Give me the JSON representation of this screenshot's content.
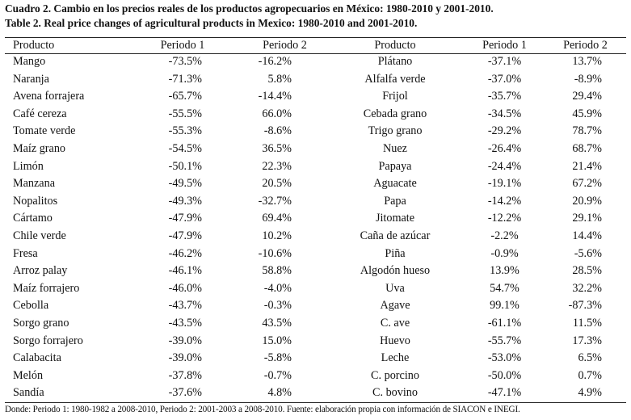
{
  "caption": {
    "spanish": "Cuadro 2. Cambio en los precios reales de los productos agropecuarios en México: 1980-2010 y 2001-2010.",
    "english": "Table 2. Real price changes of agricultural products in Mexico: 1980-2010 and 2001-2010."
  },
  "table": {
    "headers": [
      "Producto",
      "Periodo 1",
      "Periodo 2",
      "Producto",
      "Periodo 1",
      "Periodo 2"
    ],
    "rows": [
      [
        "Mango",
        "-73.5%",
        "-16.2%",
        "Plátano",
        "-37.1%",
        "13.7%"
      ],
      [
        "Naranja",
        "-71.3%",
        "5.8%",
        "Alfalfa verde",
        "-37.0%",
        "-8.9%"
      ],
      [
        "Avena forrajera",
        "-65.7%",
        "-14.4%",
        "Frijol",
        "-35.7%",
        "29.4%"
      ],
      [
        "Café cereza",
        "-55.5%",
        "66.0%",
        "Cebada grano",
        "-34.5%",
        "45.9%"
      ],
      [
        "Tomate verde",
        "-55.3%",
        "-8.6%",
        "Trigo grano",
        "-29.2%",
        "78.7%"
      ],
      [
        "Maíz grano",
        "-54.5%",
        "36.5%",
        "Nuez",
        "-26.4%",
        "68.7%"
      ],
      [
        "Limón",
        "-50.1%",
        "22.3%",
        "Papaya",
        "-24.4%",
        "21.4%"
      ],
      [
        "Manzana",
        "-49.5%",
        "20.5%",
        "Aguacate",
        "-19.1%",
        "67.2%"
      ],
      [
        "Nopalitos",
        "-49.3%",
        "-32.7%",
        "Papa",
        "-14.2%",
        "20.9%"
      ],
      [
        "Cártamo",
        "-47.9%",
        "69.4%",
        "Jitomate",
        "-12.2%",
        "29.1%"
      ],
      [
        "Chile verde",
        "-47.9%",
        "10.2%",
        "Caña de azúcar",
        "-2.2%",
        "14.4%"
      ],
      [
        "Fresa",
        "-46.2%",
        "-10.6%",
        "Piña",
        "-0.9%",
        "-5.6%"
      ],
      [
        "Arroz palay",
        "-46.1%",
        "58.8%",
        "Algodón hueso",
        "13.9%",
        "28.5%"
      ],
      [
        "Maíz forrajero",
        "-46.0%",
        "-4.0%",
        "Uva",
        "54.7%",
        "32.2%"
      ],
      [
        "Cebolla",
        "-43.7%",
        "-0.3%",
        "Agave",
        "99.1%",
        "-87.3%"
      ],
      [
        "Sorgo grano",
        "-43.5%",
        "43.5%",
        "C. ave",
        "-61.1%",
        "11.5%"
      ],
      [
        "Sorgo forrajero",
        "-39.0%",
        "15.0%",
        "Huevo",
        "-55.7%",
        "17.3%"
      ],
      [
        "Calabacita",
        "-39.0%",
        "-5.8%",
        "Leche",
        "-53.0%",
        "6.5%"
      ],
      [
        "Melón",
        "-37.8%",
        "-0.7%",
        "C. porcino",
        "-50.0%",
        "0.7%"
      ],
      [
        "Sandía",
        "-37.6%",
        "4.8%",
        "C. bovino",
        "-47.1%",
        "4.9%"
      ]
    ]
  },
  "note": "Donde: Periodo 1: 1980-1982 a 2008-2010, Periodo 2: 2001-2003 a 2008-2010. Fuente: elaboración propia con información de SIACON e INEGI."
}
